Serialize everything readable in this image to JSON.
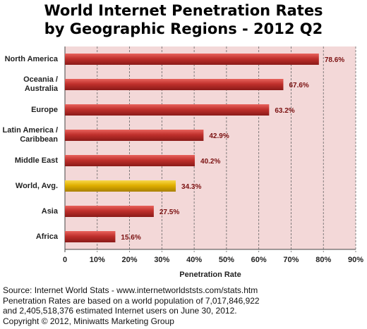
{
  "chart_data": {
    "type": "bar",
    "orientation": "horizontal",
    "title_lines": [
      "World Internet Penetration Rates",
      "by Geographic Regions - 2012 Q2"
    ],
    "categories": [
      "North America",
      "Oceania  /  Australia",
      "Europe",
      "Latin America /  Caribbean",
      "Middle East",
      "World, Avg.",
      "Asia",
      "Africa"
    ],
    "values": [
      78.6,
      67.6,
      63.2,
      42.9,
      40.2,
      34.3,
      27.5,
      15.6
    ],
    "data_labels": [
      "78.6%",
      "67.6%",
      "63.2%",
      "42.9%",
      "40.2%",
      "34.3%",
      "27.5%",
      "15.6%"
    ],
    "highlight_category": "World, Avg.",
    "xlabel": "Penetration Rate",
    "ylabel": "",
    "xlim": [
      0,
      90
    ],
    "x_ticks": [
      0,
      10,
      20,
      30,
      40,
      50,
      60,
      70,
      80,
      90
    ],
    "x_tick_labels": [
      "0",
      "10%",
      "20%",
      "30%",
      "40%",
      "50%",
      "60%",
      "70%",
      "80%",
      "90%"
    ],
    "grid": "vertical",
    "legend": "none",
    "colors": {
      "bar": "#c0302c",
      "bar_highlight": "#e0b000",
      "plot_background": "#f3d8d8",
      "gridline": "#666666",
      "data_label": "#7a1010"
    }
  },
  "footer": {
    "source_text": "Source: Internet World Stats - www.internetworldststs.com/stats.htm\nPenetration Rates are based on a world population of 7,017,846,922\nand 2,405,518,376 estimated Internet users on June 30, 2012.\nCopyright © 2012, Miniwatts Marketing Group"
  }
}
